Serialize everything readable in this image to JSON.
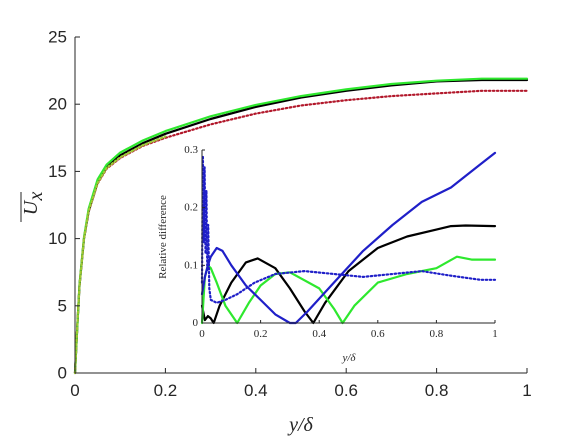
{
  "chart_data": [
    {
      "type": "line",
      "title": "",
      "xlabel": "y/δ",
      "ylabel": "U_x",
      "xlim": [
        0,
        1
      ],
      "ylim": [
        0,
        25
      ],
      "xticks": [
        0,
        0.2,
        0.4,
        0.6,
        0.8,
        1
      ],
      "xtick_labels": [
        "0",
        "0.2",
        "0.4",
        "0.6",
        "0.8",
        "1"
      ],
      "yticks": [
        0,
        5,
        10,
        15,
        20,
        25
      ],
      "ytick_labels": [
        "0",
        "5",
        "10",
        "15",
        "20",
        "25"
      ],
      "grid": false,
      "series": [
        {
          "color": "#000000",
          "style": "solid",
          "x": [
            0,
            0.005,
            0.01,
            0.02,
            0.03,
            0.05,
            0.07,
            0.1,
            0.15,
            0.2,
            0.3,
            0.4,
            0.5,
            0.6,
            0.7,
            0.8,
            0.9,
            1.0
          ],
          "y": [
            0,
            3.5,
            6.5,
            10.0,
            12.0,
            14.2,
            15.3,
            16.2,
            17.1,
            17.8,
            18.9,
            19.8,
            20.5,
            21.0,
            21.4,
            21.7,
            21.8,
            21.8
          ]
        },
        {
          "color": "#2ee82e",
          "style": "solid",
          "x": [
            0,
            0.005,
            0.01,
            0.02,
            0.03,
            0.05,
            0.07,
            0.1,
            0.15,
            0.2,
            0.3,
            0.4,
            0.5,
            0.6,
            0.7,
            0.8,
            0.9,
            1.0
          ],
          "y": [
            0,
            3.4,
            6.6,
            10.1,
            12.2,
            14.4,
            15.5,
            16.4,
            17.3,
            18.0,
            19.1,
            19.95,
            20.6,
            21.1,
            21.5,
            21.75,
            21.9,
            21.9
          ]
        },
        {
          "color": "#b2182b",
          "style": "dotted",
          "x": [
            0,
            0.005,
            0.01,
            0.02,
            0.03,
            0.05,
            0.07,
            0.1,
            0.15,
            0.2,
            0.3,
            0.4,
            0.5,
            0.6,
            0.7,
            0.8,
            0.9,
            1.0
          ],
          "y": [
            0,
            3.5,
            6.5,
            10.0,
            12.0,
            14.1,
            15.2,
            16.0,
            16.9,
            17.5,
            18.5,
            19.3,
            19.9,
            20.3,
            20.6,
            20.8,
            21.0,
            21.0
          ]
        },
        {
          "color": "#9acd32",
          "style": "dotted",
          "x": [
            0,
            0.005,
            0.01,
            0.02,
            0.03,
            0.05,
            0.07,
            0.1,
            0.15,
            0.2
          ],
          "y": [
            0,
            3.45,
            6.5,
            10.0,
            12.05,
            14.15,
            15.25,
            16.05,
            16.95,
            17.6
          ]
        }
      ]
    },
    {
      "type": "line",
      "title": "",
      "xlabel": "y/δ",
      "ylabel": "Relative difference",
      "xlim": [
        0,
        1
      ],
      "ylim": [
        0,
        0.3
      ],
      "xticks": [
        0,
        0.2,
        0.4,
        0.6,
        0.8,
        1
      ],
      "xtick_labels": [
        "0",
        "0.2",
        "0.4",
        "0.6",
        "0.8",
        "1"
      ],
      "yticks": [
        0,
        0.1,
        0.2,
        0.3
      ],
      "ytick_labels": [
        "0",
        "0.1",
        "0.2",
        "0.3"
      ],
      "grid": false,
      "series": [
        {
          "color": "#000000",
          "style": "solid",
          "x": [
            0,
            0.01,
            0.02,
            0.03,
            0.04,
            0.06,
            0.1,
            0.15,
            0.19,
            0.25,
            0.3,
            0.35,
            0.38,
            0.42,
            0.5,
            0.6,
            0.7,
            0.8,
            0.85,
            0.9,
            1.0
          ],
          "y": [
            0.03,
            0.005,
            0.012,
            0.008,
            0.0,
            0.03,
            0.07,
            0.105,
            0.112,
            0.095,
            0.06,
            0.02,
            0.0,
            0.035,
            0.09,
            0.13,
            0.15,
            0.162,
            0.168,
            0.169,
            0.168
          ]
        },
        {
          "color": "#2ee82e",
          "style": "solid",
          "x": [
            0,
            0.01,
            0.02,
            0.03,
            0.05,
            0.08,
            0.12,
            0.16,
            0.2,
            0.25,
            0.3,
            0.4,
            0.45,
            0.48,
            0.52,
            0.6,
            0.7,
            0.8,
            0.87,
            0.92,
            1.0
          ],
          "y": [
            0.0,
            0.08,
            0.1,
            0.095,
            0.07,
            0.03,
            0.0,
            0.035,
            0.065,
            0.085,
            0.088,
            0.06,
            0.025,
            0.0,
            0.03,
            0.07,
            0.085,
            0.095,
            0.115,
            0.11,
            0.11
          ]
        },
        {
          "color": "#1f1fc8",
          "style": "solid",
          "x": [
            0,
            0.01,
            0.02,
            0.03,
            0.05,
            0.07,
            0.1,
            0.15,
            0.2,
            0.25,
            0.3,
            0.32,
            0.36,
            0.45,
            0.55,
            0.65,
            0.75,
            0.85,
            0.9,
            0.95,
            1.0
          ],
          "y": [
            0.05,
            0.08,
            0.1,
            0.115,
            0.13,
            0.125,
            0.1,
            0.065,
            0.04,
            0.015,
            0.0,
            0.0,
            0.02,
            0.07,
            0.125,
            0.17,
            0.21,
            0.235,
            0.255,
            0.275,
            0.295
          ]
        },
        {
          "color": "#1f1fc8",
          "style": "dotted",
          "x": [
            0,
            0.003,
            0.006,
            0.009,
            0.012,
            0.015,
            0.018,
            0.021,
            0.025,
            0.03,
            0.05,
            0.08,
            0.12,
            0.18,
            0.25,
            0.35,
            0.45,
            0.55,
            0.65,
            0.75,
            0.85,
            0.95,
            1.0
          ],
          "y": [
            0.07,
            0.29,
            0.14,
            0.27,
            0.12,
            0.23,
            0.09,
            0.17,
            0.06,
            0.04,
            0.035,
            0.04,
            0.05,
            0.07,
            0.085,
            0.09,
            0.085,
            0.08,
            0.085,
            0.09,
            0.082,
            0.075,
            0.075
          ]
        }
      ]
    }
  ]
}
